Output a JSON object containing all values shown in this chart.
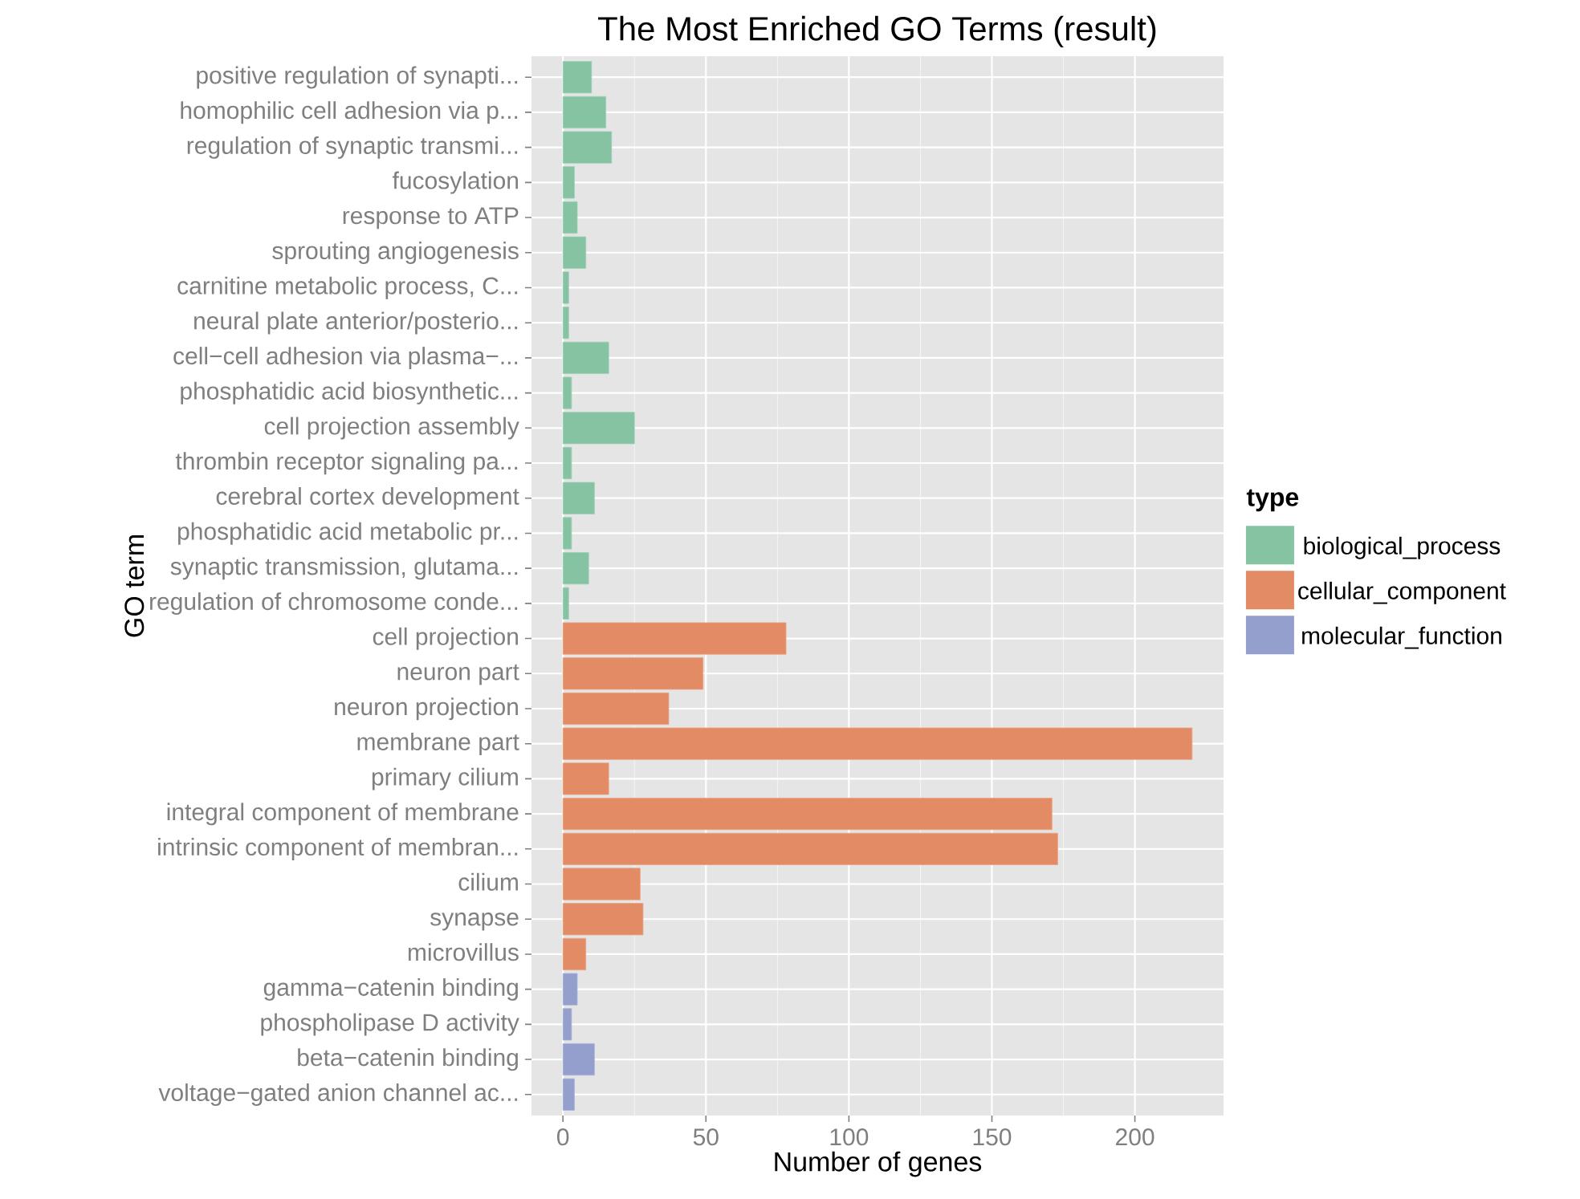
{
  "chart_data": {
    "type": "bar",
    "orientation": "horizontal",
    "title": "The Most Enriched GO Terms (result)",
    "xlabel": "Number of genes",
    "ylabel": "GO term",
    "legend_title": "type",
    "categories": [
      "positive regulation of synapti...",
      "homophilic cell adhesion via p...",
      "regulation of synaptic transmi...",
      "fucosylation",
      "response to ATP",
      "sprouting angiogenesis",
      "carnitine metabolic process, C...",
      "neural plate anterior/posterio...",
      "cell−cell adhesion via plasma−...",
      "phosphatidic acid biosynthetic...",
      "cell projection assembly",
      "thrombin receptor signaling pa...",
      "cerebral cortex development",
      "phosphatidic acid metabolic pr...",
      "synaptic transmission, glutama...",
      "regulation of chromosome conde...",
      "cell projection",
      "neuron part",
      "neuron projection",
      "membrane part",
      "primary cilium",
      "integral component of membrane",
      "intrinsic component of membran...",
      "cilium",
      "synapse",
      "microvillus",
      "gamma−catenin binding",
      "phospholipase D activity",
      "beta−catenin binding",
      "voltage−gated anion channel ac..."
    ],
    "series": [
      {
        "name": "biological_process",
        "color": "#85c3a3",
        "values": [
          10,
          15,
          17,
          4,
          5,
          8,
          2,
          2,
          16,
          3,
          25,
          3,
          11,
          3,
          9,
          2,
          null,
          null,
          null,
          null,
          null,
          null,
          null,
          null,
          null,
          null,
          null,
          null,
          null,
          null
        ]
      },
      {
        "name": "cellular_component",
        "color": "#e38b64",
        "values": [
          null,
          null,
          null,
          null,
          null,
          null,
          null,
          null,
          null,
          null,
          null,
          null,
          null,
          null,
          null,
          null,
          78,
          49,
          37,
          220,
          16,
          171,
          173,
          27,
          28,
          8,
          null,
          null,
          null,
          null
        ]
      },
      {
        "name": "molecular_function",
        "color": "#949fcd",
        "values": [
          null,
          null,
          null,
          null,
          null,
          null,
          null,
          null,
          null,
          null,
          null,
          null,
          null,
          null,
          null,
          null,
          null,
          null,
          null,
          null,
          null,
          null,
          null,
          null,
          null,
          null,
          5,
          3,
          11,
          4
        ]
      }
    ],
    "xlim": [
      -11,
      231
    ],
    "xticks": [
      0,
      50,
      100,
      150,
      200
    ],
    "grid": true,
    "legend": "right"
  }
}
